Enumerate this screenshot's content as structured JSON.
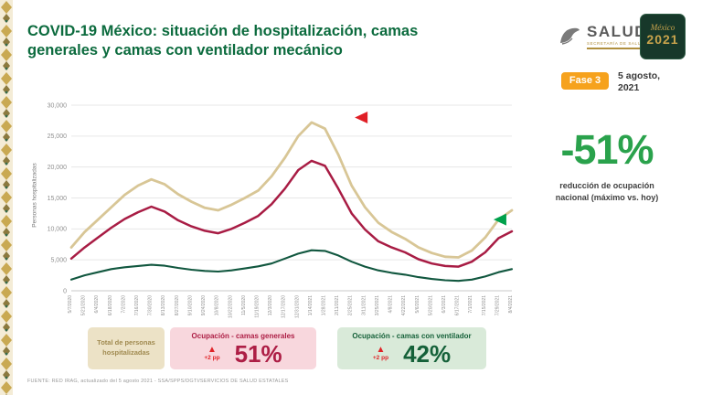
{
  "header": {
    "title_line1": "COVID-19 México: situación de hospitalización, camas",
    "title_line2": "generales y camas con ventilador mecánico",
    "salud": {
      "wordmark": "SALUD",
      "subtitle": "SECRETARÍA DE SALUD"
    },
    "mexico_badge": {
      "word": "México",
      "year": "2021"
    },
    "fase_badge": "Fase 3",
    "date_line1": "5 agosto,",
    "date_line2": "2021"
  },
  "highlight": {
    "value": "-51%",
    "caption": "reducción de ocupación nacional (máximo vs. hoy)"
  },
  "legend": {
    "total_label": "Total de personas hospitalizadas",
    "generales": {
      "title": "Ocupación - camas generales",
      "delta": "+2 pp",
      "value": "51%"
    },
    "ventilador": {
      "title": "Ocupación - camas con ventilador",
      "delta": "+2 pp",
      "value": "42%"
    }
  },
  "footer": "FUENTE: RED IRAG, actualizado del 5 agosto 2021  -  SSA/SPPS/DGTI/SERVICIOS DE SALUD ESTATALES",
  "chart_data": {
    "type": "line",
    "title": "",
    "xlabel": "",
    "ylabel": "Personas hospitalizadas",
    "ylim": [
      0,
      30000
    ],
    "ytick_step": 5000,
    "grid": true,
    "legend_position": "bottom",
    "x": [
      "5/7/2020",
      "5/21/2020",
      "6/4/2020",
      "6/18/2020",
      "7/2/2020",
      "7/16/2020",
      "7/30/2020",
      "8/13/2020",
      "8/27/2020",
      "9/10/2020",
      "9/24/2020",
      "10/8/2020",
      "10/22/2020",
      "11/5/2020",
      "11/19/2020",
      "12/3/2020",
      "12/17/2020",
      "12/31/2020",
      "1/14/2021",
      "1/28/2021",
      "2/11/2021",
      "2/25/2021",
      "3/11/2021",
      "3/25/2021",
      "4/8/2021",
      "4/22/2021",
      "5/6/2021",
      "5/20/2021",
      "6/3/2021",
      "6/17/2021",
      "7/1/2021",
      "7/15/2021",
      "7/29/2021",
      "8/4/2021"
    ],
    "series": [
      {
        "name": "Total de personas hospitalizadas",
        "color": "#d8c696",
        "values": [
          7000,
          9500,
          11500,
          13500,
          15500,
          17000,
          18000,
          17200,
          15600,
          14400,
          13400,
          13000,
          13900,
          15000,
          16200,
          18500,
          21500,
          25000,
          27200,
          26200,
          22000,
          17000,
          13500,
          11000,
          9500,
          8400,
          7000,
          6100,
          5500,
          5400,
          6500,
          8600,
          11500,
          13000
        ]
      },
      {
        "name": "Ocupación - camas generales",
        "color": "#a81c44",
        "values": [
          5200,
          7000,
          8600,
          10200,
          11600,
          12700,
          13600,
          12800,
          11400,
          10400,
          9700,
          9300,
          10000,
          11000,
          12100,
          14000,
          16500,
          19500,
          21000,
          20200,
          16500,
          12500,
          9900,
          8000,
          7000,
          6200,
          5100,
          4400,
          4000,
          3900,
          4700,
          6200,
          8500,
          9600
        ]
      },
      {
        "name": "Ocupación - camas con ventilador",
        "color": "#11573f",
        "values": [
          1800,
          2500,
          3000,
          3500,
          3800,
          4000,
          4200,
          4050,
          3700,
          3400,
          3200,
          3100,
          3300,
          3600,
          3950,
          4400,
          5200,
          6000,
          6550,
          6450,
          5700,
          4700,
          3900,
          3300,
          2900,
          2600,
          2200,
          1900,
          1700,
          1600,
          1800,
          2300,
          3000,
          3500
        ]
      }
    ],
    "annotations": [
      {
        "shape": "triangle-left",
        "color": "#e01f26",
        "x_frac": 0.66,
        "value": 28000
      },
      {
        "shape": "triangle-left",
        "color": "#00a14b",
        "x_frac": 0.975,
        "value": 11500
      }
    ]
  }
}
